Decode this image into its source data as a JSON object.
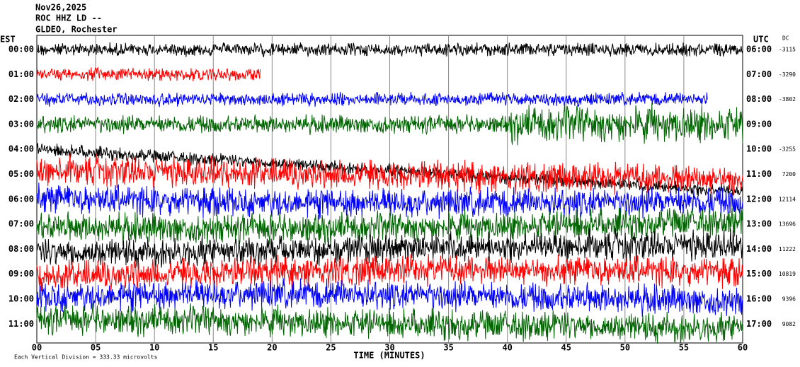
{
  "header": {
    "date": "Nov26,2025",
    "station": "ROC HHZ LD --",
    "network": "GLDEO, Rochester"
  },
  "left_zone": "EST",
  "right_zone": "UTC",
  "dc_heading": "DC",
  "rows": [
    {
      "est": "00:00",
      "utc": "06:00",
      "dc": "-3115"
    },
    {
      "est": "01:00",
      "utc": "07:00",
      "dc": "-3290"
    },
    {
      "est": "02:00",
      "utc": "08:00",
      "dc": "-3802"
    },
    {
      "est": "03:00",
      "utc": "09:00",
      "dc": null
    },
    {
      "est": "04:00",
      "utc": "10:00",
      "dc": "-3255"
    },
    {
      "est": "05:00",
      "utc": "11:00",
      "dc": "7200"
    },
    {
      "est": "06:00",
      "utc": "12:00",
      "dc": "12114"
    },
    {
      "est": "07:00",
      "utc": "13:00",
      "dc": "13696"
    },
    {
      "est": "08:00",
      "utc": "14:00",
      "dc": "11222"
    },
    {
      "est": "09:00",
      "utc": "15:00",
      "dc": "10819"
    },
    {
      "est": "10:00",
      "utc": "16:00",
      "dc": "9396"
    },
    {
      "est": "11:00",
      "utc": "17:00",
      "dc": "9082"
    }
  ],
  "trace_colors": [
    "#000000",
    "#ff0000",
    "#0000ff",
    "#006400"
  ],
  "x_ticks": [
    "00",
    "05",
    "10",
    "15",
    "20",
    "25",
    "30",
    "35",
    "40",
    "45",
    "50",
    "55",
    "60"
  ],
  "x_label": "TIME (MINUTES)",
  "footer": "Each Vertical Division =  333.33 microvolts"
}
